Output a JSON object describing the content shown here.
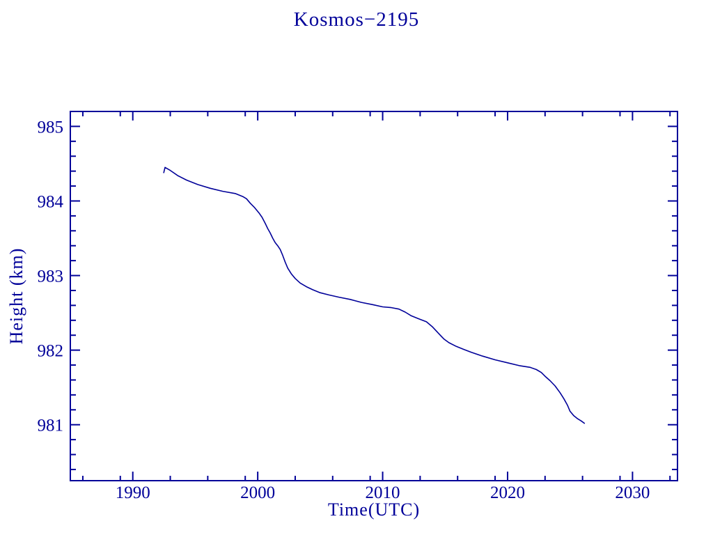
{
  "page": {
    "background": "#ffffff"
  },
  "colors": {
    "accent": "#000099",
    "background": "#ffffff"
  },
  "chart_data": {
    "type": "line",
    "title": "Kosmos−2195",
    "xlabel": "Time(UTC)",
    "ylabel": "Height (km)",
    "xlim": [
      1985.0,
      2033.6
    ],
    "ylim": [
      980.25,
      985.2
    ],
    "xticks": [
      1990,
      2000,
      2010,
      2020,
      2030
    ],
    "xticks_minor": [
      1986,
      1989,
      1993,
      1996,
      1999,
      2003,
      2006,
      2009,
      2013,
      2016,
      2019,
      2023,
      2026,
      2029,
      2033
    ],
    "yticks": [
      981,
      982,
      983,
      984,
      985
    ],
    "yticks_minor": [
      980.4,
      980.6,
      980.8,
      981.2,
      981.4,
      981.6,
      981.8,
      982.2,
      982.4,
      982.6,
      982.8,
      983.2,
      983.4,
      983.6,
      983.8,
      984.2,
      984.4,
      984.6,
      984.8
    ],
    "grid": false,
    "frame_ticks_all_sides": true,
    "line_color": "#000099",
    "series": [
      {
        "name": "height",
        "points": [
          [
            1992.48,
            984.38
          ],
          [
            1992.58,
            984.45
          ],
          [
            1993.0,
            984.41
          ],
          [
            1993.6,
            984.34
          ],
          [
            1994.3,
            984.28
          ],
          [
            1995.2,
            984.22
          ],
          [
            1996.2,
            984.17
          ],
          [
            1997.2,
            984.13
          ],
          [
            1998.2,
            984.1
          ],
          [
            1998.8,
            984.06
          ],
          [
            1999.1,
            984.03
          ],
          [
            1999.4,
            983.97
          ],
          [
            1999.75,
            983.91
          ],
          [
            2000.1,
            983.84
          ],
          [
            2000.35,
            983.78
          ],
          [
            2000.6,
            983.7
          ],
          [
            2000.8,
            983.63
          ],
          [
            2001.0,
            983.57
          ],
          [
            2001.2,
            983.5
          ],
          [
            2001.4,
            983.44
          ],
          [
            2001.6,
            983.4
          ],
          [
            2001.8,
            983.35
          ],
          [
            2002.0,
            983.27
          ],
          [
            2002.2,
            983.18
          ],
          [
            2002.4,
            983.1
          ],
          [
            2002.7,
            983.02
          ],
          [
            2003.0,
            982.96
          ],
          [
            2003.4,
            982.9
          ],
          [
            2003.9,
            982.85
          ],
          [
            2004.4,
            982.81
          ],
          [
            2005.0,
            982.77
          ],
          [
            2005.7,
            982.74
          ],
          [
            2006.5,
            982.71
          ],
          [
            2007.4,
            982.68
          ],
          [
            2008.3,
            982.64
          ],
          [
            2009.2,
            982.61
          ],
          [
            2010.0,
            982.58
          ],
          [
            2010.7,
            982.57
          ],
          [
            2011.3,
            982.55
          ],
          [
            2011.8,
            982.51
          ],
          [
            2012.3,
            982.46
          ],
          [
            2012.9,
            982.42
          ],
          [
            2013.5,
            982.38
          ],
          [
            2014.0,
            982.31
          ],
          [
            2014.5,
            982.22
          ],
          [
            2014.9,
            982.15
          ],
          [
            2015.3,
            982.1
          ],
          [
            2015.9,
            982.05
          ],
          [
            2016.5,
            982.01
          ],
          [
            2017.1,
            981.97
          ],
          [
            2018.0,
            981.92
          ],
          [
            2019.0,
            981.87
          ],
          [
            2020.0,
            981.83
          ],
          [
            2021.0,
            981.79
          ],
          [
            2021.8,
            981.77
          ],
          [
            2022.3,
            981.74
          ],
          [
            2022.7,
            981.7
          ],
          [
            2023.0,
            981.65
          ],
          [
            2023.4,
            981.59
          ],
          [
            2023.8,
            981.52
          ],
          [
            2024.2,
            981.43
          ],
          [
            2024.5,
            981.35
          ],
          [
            2024.8,
            981.26
          ],
          [
            2025.0,
            981.18
          ],
          [
            2025.3,
            981.12
          ],
          [
            2025.6,
            981.08
          ],
          [
            2025.9,
            981.05
          ],
          [
            2026.15,
            981.02
          ]
        ]
      }
    ]
  }
}
